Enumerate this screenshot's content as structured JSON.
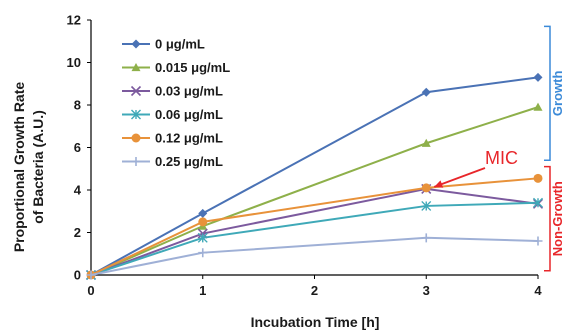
{
  "chart_data": {
    "type": "line",
    "xlabel": "Incubation Time [h]",
    "ylabel_lines": [
      "Proportional Growth Rate",
      "of Bacteria (A.U.)"
    ],
    "xlim": [
      0,
      4
    ],
    "ylim": [
      0,
      12
    ],
    "xticks": [
      0,
      1,
      2,
      3,
      4
    ],
    "yticks": [
      0,
      2,
      4,
      6,
      8,
      10,
      12
    ],
    "grid": false,
    "legend_position": "top-left",
    "series": [
      {
        "name": "0 μg/mL",
        "color": "#4a72b5",
        "marker": "diamond",
        "x": [
          0,
          1,
          3,
          4
        ],
        "y": [
          0,
          2.9,
          8.6,
          9.3
        ]
      },
      {
        "name": "0.015 μg/mL",
        "color": "#8eb04a",
        "marker": "triangle",
        "x": [
          0,
          1,
          3,
          4
        ],
        "y": [
          0,
          2.3,
          6.2,
          7.9
        ]
      },
      {
        "name": "0.03 μg/mL",
        "color": "#7c5a9e",
        "marker": "x",
        "x": [
          0,
          1,
          3,
          4
        ],
        "y": [
          0,
          1.95,
          4.05,
          3.35
        ]
      },
      {
        "name": "0.06 μg/mL",
        "color": "#3fa9b8",
        "marker": "asterisk",
        "x": [
          0,
          1,
          3,
          4
        ],
        "y": [
          0,
          1.75,
          3.25,
          3.4
        ]
      },
      {
        "name": "0.12 μg/mL",
        "color": "#e8923a",
        "marker": "circle",
        "x": [
          0,
          1,
          3,
          4
        ],
        "y": [
          0,
          2.5,
          4.1,
          4.55
        ]
      },
      {
        "name": "0.25 μg/mL",
        "color": "#9fb0d6",
        "marker": "plus",
        "x": [
          0,
          1,
          3,
          4
        ],
        "y": [
          0,
          1.05,
          1.75,
          1.6
        ]
      }
    ],
    "annotations": {
      "mic": {
        "text": "MIC",
        "color": "#e8262a",
        "points_to": {
          "x": 3,
          "y": 4.1
        }
      },
      "growth": {
        "text": "Growth",
        "color": "#3b8ad8",
        "y_range": [
          5.4,
          11.7
        ]
      },
      "non_growth": {
        "text": "Non-Growth",
        "color": "#e8262a",
        "y_range": [
          0.2,
          5.1
        ]
      }
    }
  }
}
